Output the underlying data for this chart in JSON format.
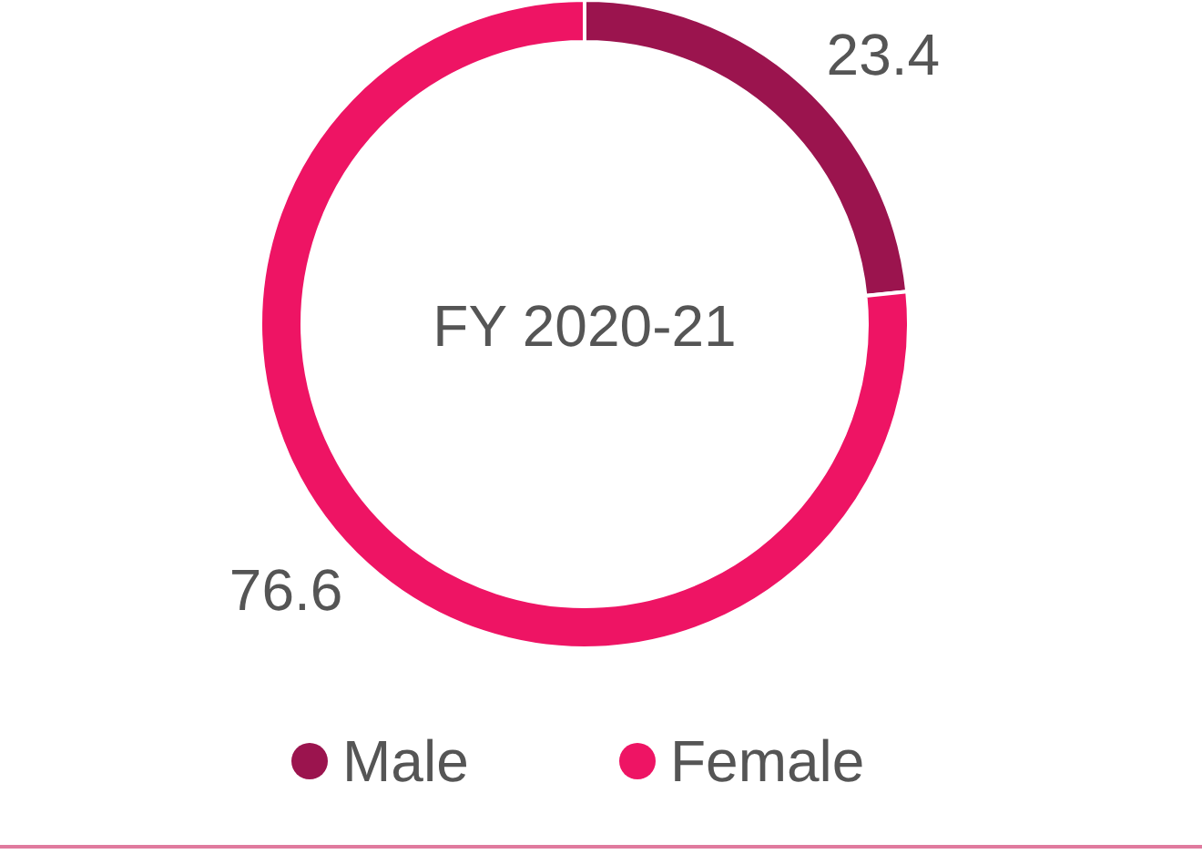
{
  "chart_data": {
    "type": "donut",
    "title": "FY 2020-21",
    "categories": [
      "Male",
      "Female"
    ],
    "values": [
      23.4,
      76.6
    ],
    "colors": [
      "#9b144e",
      "#ee1464"
    ],
    "data_labels": true,
    "legend": "bottom"
  }
}
